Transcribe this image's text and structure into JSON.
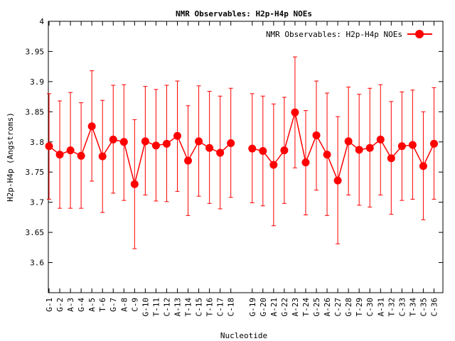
{
  "chart_data": {
    "type": "line",
    "title": "NMR Observables: H2p-H4p NOEs",
    "xlabel": "Nucleotide",
    "ylabel": "H2p-H4p (Angstroms)",
    "ylim": [
      3.55,
      4.0
    ],
    "yticks": [
      "3.6",
      "3.65",
      "3.7",
      "3.75",
      "3.8",
      "3.85",
      "3.9",
      "3.95",
      "4"
    ],
    "legend": {
      "label": "NMR Observables: H2p-H4p NOEs",
      "placement": "top-right"
    },
    "color": "#ff0000",
    "series": [
      {
        "name": "NMR Observables: H2p-H4p NOEs",
        "segments": [
          {
            "labels": [
              "G-1",
              "G-2",
              "A-3",
              "G-4",
              "A-5",
              "T-6",
              "G-7",
              "A-8",
              "C-9",
              "G-10",
              "T-11",
              "C-12",
              "A-13",
              "T-14",
              "C-15",
              "T-16",
              "C-17",
              "C-18"
            ],
            "values": [
              3.793,
              3.779,
              3.786,
              3.777,
              3.826,
              3.776,
              3.804,
              3.8,
              3.73,
              3.801,
              3.794,
              3.797,
              3.81,
              3.769,
              3.801,
              3.79,
              3.782,
              3.798
            ],
            "err_low": [
              3.705,
              3.69,
              3.69,
              3.69,
              3.735,
              3.683,
              3.715,
              3.703,
              3.623,
              3.712,
              3.702,
              3.701,
              3.718,
              3.678,
              3.71,
              3.698,
              3.689,
              3.708
            ],
            "err_high": [
              3.88,
              3.868,
              3.882,
              3.865,
              3.918,
              3.869,
              3.894,
              3.895,
              3.837,
              3.892,
              3.887,
              3.894,
              3.901,
              3.86,
              3.893,
              3.884,
              3.876,
              3.889
            ]
          },
          {
            "labels": [
              "G-19",
              "G-20",
              "A-21",
              "G-22",
              "A-23",
              "T-24",
              "G-25",
              "A-26",
              "C-27",
              "G-28",
              "T-29",
              "C-30",
              "A-31",
              "T-32",
              "C-33",
              "T-34",
              "C-35",
              "C-36"
            ],
            "values": [
              3.789,
              3.785,
              3.762,
              3.786,
              3.849,
              3.766,
              3.811,
              3.779,
              3.736,
              3.801,
              3.787,
              3.79,
              3.804,
              3.773,
              3.793,
              3.795,
              3.76,
              3.797
            ],
            "err_low": [
              3.699,
              3.694,
              3.661,
              3.698,
              3.757,
              3.679,
              3.72,
              3.678,
              3.631,
              3.712,
              3.695,
              3.692,
              3.712,
              3.68,
              3.703,
              3.705,
              3.671,
              3.705
            ],
            "err_high": [
              3.88,
              3.876,
              3.863,
              3.874,
              3.941,
              3.852,
              3.901,
              3.881,
              3.842,
              3.891,
              3.879,
              3.889,
              3.895,
              3.867,
              3.883,
              3.886,
              3.85,
              3.89
            ]
          }
        ]
      }
    ]
  }
}
